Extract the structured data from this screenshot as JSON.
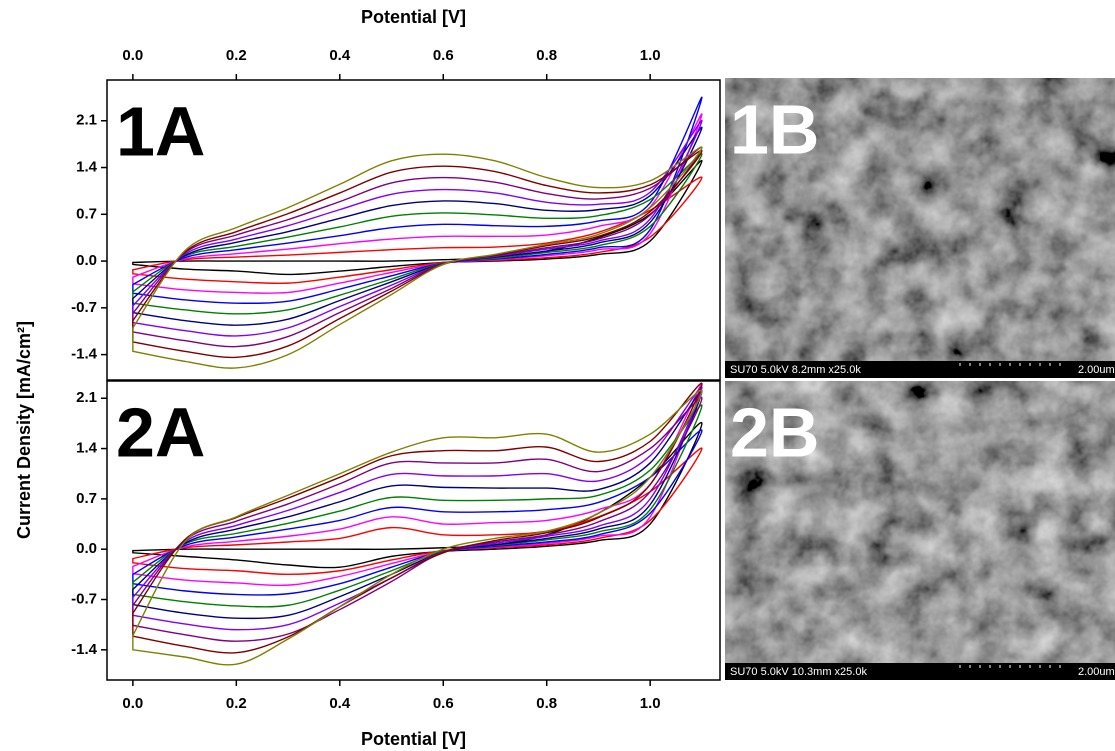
{
  "chart_data": [
    {
      "type": "line",
      "label": "1A",
      "xlabel": "Potential [V]",
      "xaxis_position": "top",
      "ylabel": "Current Density [mA/cm²]",
      "x": [
        0,
        0.1,
        0.2,
        0.3,
        0.4,
        0.5,
        0.6,
        0.7,
        0.8,
        0.9,
        1.0,
        1.1,
        1.0,
        0.9,
        0.8,
        0.7,
        0.6,
        0.5,
        0.4,
        0.3,
        0.2,
        0.1,
        0
      ],
      "xlim": [
        -0.05,
        1.135
      ],
      "xticks": [
        {
          "value": 0,
          "label": "0.0"
        },
        0.2,
        0.4,
        0.6,
        0.8,
        {
          "value": 1,
          "label": "1.0"
        }
      ],
      "ylim": [
        -1.78,
        2.71
      ],
      "yticks": [
        -1.4,
        -0.7,
        {
          "value": 0,
          "label": "0.0"
        },
        0.7,
        1.4,
        2.1
      ],
      "series": [
        {
          "color": "#000000",
          "values": [
            -0.02,
            0,
            0,
            0,
            0,
            0,
            0.02,
            0.05,
            0.15,
            0.35,
            0.7,
            1.5,
            0.3,
            0.1,
            0.03,
            0,
            -0.02,
            -0.08,
            -0.15,
            -0.2,
            -0.15,
            -0.12,
            -0.05
          ]
        },
        {
          "color": "#ff0000",
          "values": [
            -0.13,
            0.02,
            0.06,
            0.09,
            0.13,
            0.17,
            0.2,
            0.21,
            0.27,
            0.43,
            0.76,
            1.25,
            0.36,
            0.13,
            0.05,
            0.01,
            -0.02,
            -0.13,
            -0.24,
            -0.33,
            -0.31,
            -0.27,
            -0.19
          ]
        },
        {
          "color": "#ff00ff",
          "values": [
            -0.24,
            0.03,
            0.11,
            0.18,
            0.26,
            0.33,
            0.37,
            0.37,
            0.39,
            0.52,
            0.81,
            2.2,
            0.41,
            0.17,
            0.08,
            0.02,
            -0.03,
            -0.17,
            -0.33,
            -0.47,
            -0.47,
            -0.43,
            -0.34
          ]
        },
        {
          "color": "#0000ff",
          "values": [
            -0.35,
            0.05,
            0.17,
            0.27,
            0.38,
            0.5,
            0.55,
            0.53,
            0.52,
            0.6,
            0.87,
            2.45,
            0.47,
            0.2,
            0.1,
            0.03,
            -0.03,
            -0.22,
            -0.42,
            -0.6,
            -0.63,
            -0.58,
            -0.48
          ]
        },
        {
          "color": "#008000",
          "values": [
            -0.46,
            0.07,
            0.22,
            0.36,
            0.51,
            0.67,
            0.72,
            0.69,
            0.64,
            0.68,
            0.92,
            1.6,
            0.52,
            0.23,
            0.13,
            0.04,
            -0.03,
            -0.27,
            -0.51,
            -0.73,
            -0.79,
            -0.73,
            -0.63
          ]
        },
        {
          "color": "#000080",
          "values": [
            -0.56,
            0.08,
            0.28,
            0.44,
            0.64,
            0.83,
            0.9,
            0.86,
            0.76,
            0.77,
            0.98,
            2.0,
            0.58,
            0.27,
            0.15,
            0.06,
            -0.04,
            -0.31,
            -0.59,
            -0.87,
            -0.96,
            -0.89,
            -0.77
          ]
        },
        {
          "color": "#8000ff",
          "values": [
            -0.67,
            0.1,
            0.33,
            0.53,
            0.77,
            1.0,
            1.07,
            1.02,
            0.88,
            0.85,
            1.03,
            2.1,
            0.63,
            0.3,
            0.18,
            0.07,
            -0.04,
            -0.36,
            -0.68,
            -1.0,
            -1.12,
            -1.04,
            -0.92
          ]
        },
        {
          "color": "#800080",
          "values": [
            -0.78,
            0.12,
            0.39,
            0.62,
            0.89,
            1.17,
            1.25,
            1.18,
            1.01,
            0.93,
            1.09,
            1.7,
            0.69,
            0.33,
            0.2,
            0.08,
            -0.04,
            -0.41,
            -0.77,
            -1.13,
            -1.28,
            -1.19,
            -1.06
          ]
        },
        {
          "color": "#800000",
          "values": [
            -0.89,
            0.13,
            0.44,
            0.71,
            1.02,
            1.33,
            1.42,
            1.34,
            1.13,
            1.02,
            1.14,
            1.65,
            0.74,
            0.37,
            0.23,
            0.09,
            -0.05,
            -0.45,
            -0.86,
            -1.27,
            -1.44,
            -1.35,
            -1.21
          ]
        },
        {
          "color": "#808000",
          "values": [
            -1.0,
            0.15,
            0.5,
            0.8,
            1.15,
            1.5,
            1.6,
            1.5,
            1.25,
            1.1,
            1.2,
            1.7,
            0.8,
            0.4,
            0.25,
            0.1,
            -0.05,
            -0.5,
            -0.95,
            -1.4,
            -1.6,
            -1.5,
            -1.35
          ]
        }
      ]
    },
    {
      "type": "line",
      "label": "2A",
      "xlabel": "Potential [V]",
      "xaxis_position": "bottom",
      "x": [
        0,
        0.1,
        0.2,
        0.3,
        0.4,
        0.5,
        0.6,
        0.7,
        0.8,
        0.9,
        1.0,
        1.1,
        1.0,
        0.9,
        0.8,
        0.7,
        0.6,
        0.5,
        0.4,
        0.3,
        0.2,
        0.1,
        0
      ],
      "xlim": [
        -0.05,
        1.135
      ],
      "xticks": [
        {
          "value": 0,
          "label": "0.0"
        },
        0.2,
        0.4,
        0.6,
        0.8,
        {
          "value": 1,
          "label": "1.0"
        }
      ],
      "ylim": [
        -1.82,
        2.34
      ],
      "yticks": [
        -1.4,
        -0.7,
        {
          "value": 0,
          "label": "0.0"
        },
        0.7,
        1.4,
        2.1
      ],
      "series": [
        {
          "color": "#000000",
          "values": [
            -0.02,
            0,
            0,
            0,
            0,
            0,
            0.02,
            0.06,
            0.2,
            0.5,
            1.0,
            1.75,
            0.35,
            0.12,
            0.04,
            0,
            -0.03,
            -0.1,
            -0.25,
            -0.22,
            -0.15,
            -0.1,
            -0.05
          ]
        },
        {
          "color": "#ff0000",
          "values": [
            -0.13,
            0.02,
            0.06,
            0.1,
            0.15,
            0.3,
            0.2,
            0.2,
            0.25,
            0.45,
            0.8,
            1.4,
            0.4,
            0.15,
            0.06,
            0.02,
            -0.02,
            -0.15,
            -0.3,
            -0.35,
            -0.3,
            -0.27,
            -0.19
          ]
        },
        {
          "color": "#ff00ff",
          "values": [
            -0.24,
            0.03,
            0.11,
            0.18,
            0.28,
            0.45,
            0.35,
            0.37,
            0.4,
            0.55,
            0.9,
            2.3,
            0.45,
            0.18,
            0.08,
            0.03,
            -0.03,
            -0.2,
            -0.38,
            -0.5,
            -0.47,
            -0.43,
            -0.34
          ]
        },
        {
          "color": "#0000ff",
          "values": [
            -0.35,
            0.05,
            0.17,
            0.28,
            0.4,
            0.58,
            0.52,
            0.52,
            0.55,
            0.65,
            1.0,
            1.65,
            0.5,
            0.2,
            0.1,
            0.04,
            -0.03,
            -0.25,
            -0.48,
            -0.62,
            -0.63,
            -0.58,
            -0.48
          ]
        },
        {
          "color": "#008000",
          "values": [
            -0.46,
            0.07,
            0.22,
            0.36,
            0.53,
            0.72,
            0.68,
            0.68,
            0.7,
            0.75,
            1.1,
            2.0,
            0.55,
            0.24,
            0.13,
            0.05,
            -0.03,
            -0.3,
            -0.57,
            -0.78,
            -0.79,
            -0.73,
            -0.63
          ]
        },
        {
          "color": "#000080",
          "values": [
            -0.56,
            0.08,
            0.28,
            0.45,
            0.66,
            0.88,
            0.86,
            0.85,
            0.85,
            0.83,
            1.2,
            2.2,
            0.62,
            0.28,
            0.15,
            0.06,
            -0.04,
            -0.35,
            -0.66,
            -0.92,
            -0.96,
            -0.89,
            -0.77
          ]
        },
        {
          "color": "#8000ff",
          "values": [
            -0.67,
            0.1,
            0.33,
            0.54,
            0.79,
            1.04,
            1.02,
            1.02,
            1.05,
            0.95,
            1.3,
            2.25,
            0.7,
            0.32,
            0.18,
            0.08,
            -0.04,
            -0.4,
            -0.75,
            -1.05,
            -1.12,
            -1.04,
            -0.92
          ]
        },
        {
          "color": "#800080",
          "values": [
            -0.78,
            0.12,
            0.39,
            0.63,
            0.91,
            1.2,
            1.2,
            1.2,
            1.25,
            1.08,
            1.4,
            2.1,
            0.8,
            0.38,
            0.2,
            0.1,
            -0.04,
            -0.45,
            -0.84,
            -1.18,
            -1.28,
            -1.19,
            -1.06
          ]
        },
        {
          "color": "#800000",
          "values": [
            -0.89,
            0.13,
            0.44,
            0.71,
            1.0,
            1.3,
            1.37,
            1.37,
            1.42,
            1.22,
            1.5,
            2.3,
            0.9,
            0.44,
            0.23,
            0.12,
            -0.05,
            -0.4,
            -0.8,
            -1.22,
            -1.44,
            -1.35,
            -1.21
          ]
        },
        {
          "color": "#808000",
          "values": [
            -1.2,
            0.1,
            0.45,
            0.75,
            1.05,
            1.35,
            1.55,
            1.55,
            1.6,
            1.35,
            1.6,
            2.2,
            1.0,
            0.5,
            0.25,
            0.15,
            0,
            -0.35,
            -0.8,
            -1.25,
            -1.6,
            -1.5,
            -1.4
          ]
        }
      ]
    }
  ],
  "images": [
    {
      "label": "1B",
      "caption": "SU70 5.0kV 8.2mm x25.0k",
      "scale": "2.00um"
    },
    {
      "label": "2B",
      "caption": "SU70 5.0kV 10.3mm x25.0k",
      "scale": "2.00um"
    }
  ]
}
